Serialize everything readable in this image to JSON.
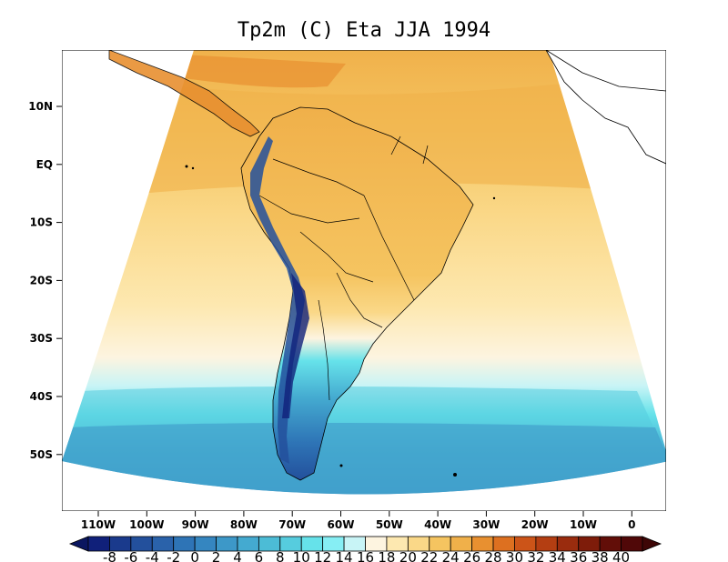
{
  "title": "Tp2m (C) Eta JJA 1994",
  "lat_labels": [
    "10N",
    "EQ",
    "10S",
    "20S",
    "30S",
    "40S",
    "50S"
  ],
  "lon_labels": [
    "110W",
    "100W",
    "90W",
    "80W",
    "70W",
    "60W",
    "50W",
    "40W",
    "30W",
    "20W",
    "10W",
    "0"
  ],
  "colorbar": {
    "labels": [
      "-8",
      "-6",
      "-4",
      "-2",
      "0",
      "2",
      "4",
      "6",
      "8",
      "10",
      "12",
      "14",
      "16",
      "18",
      "20",
      "22",
      "24",
      "26",
      "28",
      "30",
      "32",
      "34",
      "36",
      "38",
      "40"
    ],
    "colors": [
      "#10207a",
      "#1a3a8c",
      "#23509c",
      "#2a62aa",
      "#2e74b6",
      "#3586c0",
      "#3d98c8",
      "#44aad0",
      "#4cbcd6",
      "#56ccde",
      "#66e2ea",
      "#86eef4",
      "#c8f4f6",
      "#fdf4e0",
      "#fde8b0",
      "#fad888",
      "#f5c460",
      "#f0b04a",
      "#e89030",
      "#dd7020",
      "#cc5418",
      "#b43e12",
      "#9a2c0e",
      "#7e1c0a",
      "#620e08",
      "#500808"
    ],
    "left_arrow_color": "#0a1660",
    "right_arrow_color": "#3e0606"
  }
}
